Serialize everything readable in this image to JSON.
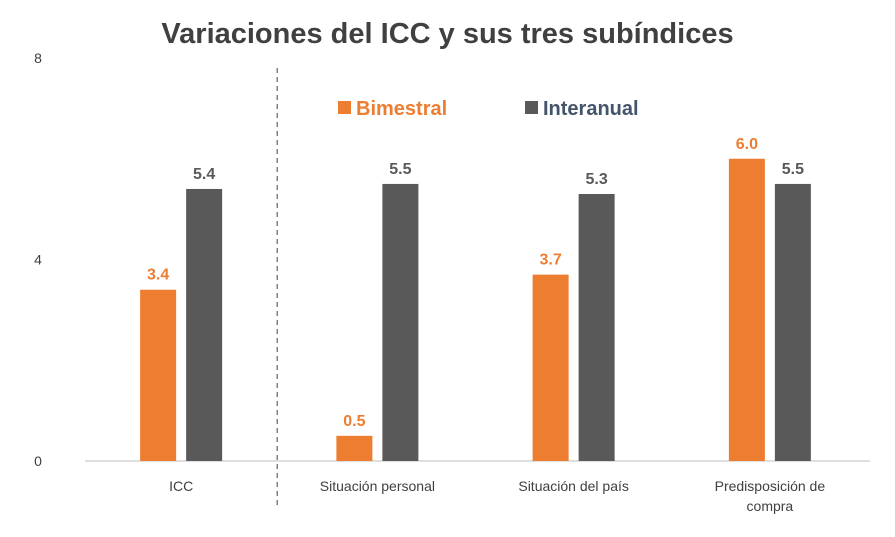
{
  "chart_data": {
    "type": "bar",
    "title": "Variaciones del ICC y sus tres subíndices",
    "categories": [
      "ICC",
      "Situación personal",
      "Situación del país",
      "Predisposición de compra"
    ],
    "category_lines": [
      [
        "ICC"
      ],
      [
        "Situación personal"
      ],
      [
        "Situación del país"
      ],
      [
        "Predisposición de",
        "compra"
      ]
    ],
    "series": [
      {
        "name": "Bimestral",
        "values": [
          3.4,
          0.5,
          3.7,
          6.0
        ],
        "labels": [
          "3.4",
          "0.5",
          "3.7",
          "6.0"
        ],
        "color": "#ED7D31"
      },
      {
        "name": "Interanual",
        "values": [
          5.4,
          5.5,
          5.3,
          5.5
        ],
        "labels": [
          "5.4",
          "5.5",
          "5.3",
          "5.5"
        ],
        "color": "#595959"
      }
    ],
    "ylim": [
      0,
      8
    ],
    "yticks": [
      "0",
      "4",
      "8"
    ],
    "xlabel": "",
    "ylabel": "",
    "legend_position": "top-center",
    "grid": false,
    "separator_after_category": 0
  }
}
